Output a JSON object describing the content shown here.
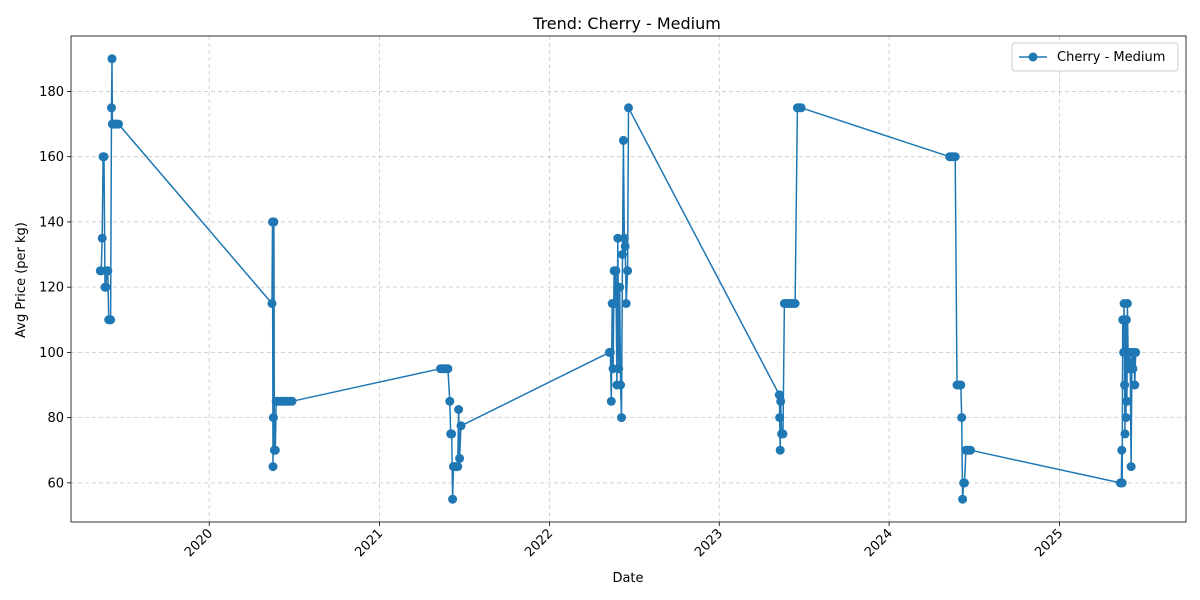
{
  "chart_data": {
    "type": "line",
    "title": "Trend: Cherry - Medium",
    "xlabel": "Date",
    "ylabel": "Avg Price (per kg)",
    "xlim": [
      "2019-03-10",
      "2025-09-30"
    ],
    "ylim": [
      48,
      197
    ],
    "x_ticks": [
      "2020-01-01",
      "2021-01-01",
      "2022-01-01",
      "2023-01-01",
      "2024-01-01",
      "2025-01-01"
    ],
    "x_tick_labels": [
      "2020",
      "2021",
      "2022",
      "2023",
      "2024",
      "2025"
    ],
    "y_ticks": [
      60,
      80,
      100,
      120,
      140,
      160,
      180
    ],
    "grid": true,
    "legend_position": "top-right",
    "colors": {
      "series": "#1f77b4"
    },
    "series": [
      {
        "name": "Cherry - Medium",
        "points": [
          [
            "2019-05-12",
            125
          ],
          [
            "2019-05-14",
            125
          ],
          [
            "2019-05-16",
            135
          ],
          [
            "2019-05-18",
            160
          ],
          [
            "2019-05-20",
            160
          ],
          [
            "2019-05-22",
            120
          ],
          [
            "2019-05-24",
            120
          ],
          [
            "2019-05-26",
            125
          ],
          [
            "2019-05-28",
            125
          ],
          [
            "2019-05-30",
            110
          ],
          [
            "2019-06-01",
            110
          ],
          [
            "2019-06-03",
            110
          ],
          [
            "2019-06-05",
            175
          ],
          [
            "2019-06-06",
            190
          ],
          [
            "2019-06-07",
            170
          ],
          [
            "2019-06-10",
            170
          ],
          [
            "2019-06-13",
            170
          ],
          [
            "2019-06-16",
            170
          ],
          [
            "2019-06-20",
            170
          ],
          [
            "2020-05-15",
            115
          ],
          [
            "2020-05-16",
            140
          ],
          [
            "2020-05-17",
            65
          ],
          [
            "2020-05-18",
            80
          ],
          [
            "2020-05-19",
            140
          ],
          [
            "2020-05-20",
            70
          ],
          [
            "2020-05-22",
            70
          ],
          [
            "2020-05-24",
            85
          ],
          [
            "2020-05-28",
            85
          ],
          [
            "2020-06-02",
            85
          ],
          [
            "2020-06-07",
            85
          ],
          [
            "2020-06-12",
            85
          ],
          [
            "2020-06-17",
            85
          ],
          [
            "2020-06-22",
            85
          ],
          [
            "2020-06-27",
            85
          ],
          [
            "2021-05-12",
            95
          ],
          [
            "2021-05-16",
            95
          ],
          [
            "2021-05-20",
            95
          ],
          [
            "2021-05-24",
            95
          ],
          [
            "2021-05-28",
            95
          ],
          [
            "2021-06-01",
            85
          ],
          [
            "2021-06-03",
            75
          ],
          [
            "2021-06-05",
            75
          ],
          [
            "2021-06-07",
            55
          ],
          [
            "2021-06-09",
            65
          ],
          [
            "2021-06-12",
            65
          ],
          [
            "2021-06-15",
            65
          ],
          [
            "2021-06-18",
            65
          ],
          [
            "2021-06-20",
            82.5
          ],
          [
            "2021-06-22",
            67.5
          ],
          [
            "2021-06-25",
            77.5
          ],
          [
            "2022-05-10",
            100
          ],
          [
            "2022-05-12",
            100
          ],
          [
            "2022-05-14",
            85
          ],
          [
            "2022-05-16",
            115
          ],
          [
            "2022-05-18",
            95
          ],
          [
            "2022-05-20",
            125
          ],
          [
            "2022-05-22",
            115
          ],
          [
            "2022-05-24",
            125
          ],
          [
            "2022-05-26",
            90
          ],
          [
            "2022-05-28",
            135
          ],
          [
            "2022-05-30",
            95
          ],
          [
            "2022-06-01",
            120
          ],
          [
            "2022-06-03",
            90
          ],
          [
            "2022-06-05",
            80
          ],
          [
            "2022-06-07",
            130
          ],
          [
            "2022-06-09",
            165
          ],
          [
            "2022-06-11",
            135
          ],
          [
            "2022-06-13",
            132.5
          ],
          [
            "2022-06-15",
            115
          ],
          [
            "2022-06-18",
            125
          ],
          [
            "2022-06-20",
            175
          ],
          [
            "2023-05-10",
            87
          ],
          [
            "2023-05-11",
            80
          ],
          [
            "2023-05-12",
            70
          ],
          [
            "2023-05-13",
            85
          ],
          [
            "2023-05-15",
            75
          ],
          [
            "2023-05-18",
            75
          ],
          [
            "2023-05-21",
            115
          ],
          [
            "2023-05-25",
            115
          ],
          [
            "2023-05-29",
            115
          ],
          [
            "2023-06-03",
            115
          ],
          [
            "2023-06-08",
            115
          ],
          [
            "2023-06-13",
            115
          ],
          [
            "2023-06-18",
            175
          ],
          [
            "2023-06-22",
            175
          ],
          [
            "2023-06-26",
            175
          ],
          [
            "2024-05-10",
            160
          ],
          [
            "2024-05-14",
            160
          ],
          [
            "2024-05-18",
            160
          ],
          [
            "2024-05-22",
            160
          ],
          [
            "2024-05-26",
            90
          ],
          [
            "2024-05-30",
            90
          ],
          [
            "2024-06-03",
            90
          ],
          [
            "2024-06-05",
            80
          ],
          [
            "2024-06-07",
            55
          ],
          [
            "2024-06-09",
            60
          ],
          [
            "2024-06-11",
            60
          ],
          [
            "2024-06-14",
            70
          ],
          [
            "2024-06-17",
            70
          ],
          [
            "2024-06-20",
            70
          ],
          [
            "2024-06-24",
            70
          ],
          [
            "2025-05-12",
            60
          ],
          [
            "2025-05-14",
            60
          ],
          [
            "2025-05-15",
            70
          ],
          [
            "2025-05-16",
            60
          ],
          [
            "2025-05-17",
            110
          ],
          [
            "2025-05-19",
            100
          ],
          [
            "2025-05-20",
            115
          ],
          [
            "2025-05-21",
            90
          ],
          [
            "2025-05-22",
            75
          ],
          [
            "2025-05-23",
            110
          ],
          [
            "2025-05-24",
            80
          ],
          [
            "2025-05-25",
            110
          ],
          [
            "2025-05-26",
            85
          ],
          [
            "2025-05-27",
            115
          ],
          [
            "2025-05-29",
            95
          ],
          [
            "2025-05-31",
            100
          ],
          [
            "2025-06-02",
            97
          ],
          [
            "2025-06-04",
            65
          ],
          [
            "2025-06-06",
            100
          ],
          [
            "2025-06-08",
            95
          ],
          [
            "2025-06-10",
            100
          ],
          [
            "2025-06-12",
            90
          ],
          [
            "2025-06-14",
            100
          ]
        ]
      }
    ]
  }
}
